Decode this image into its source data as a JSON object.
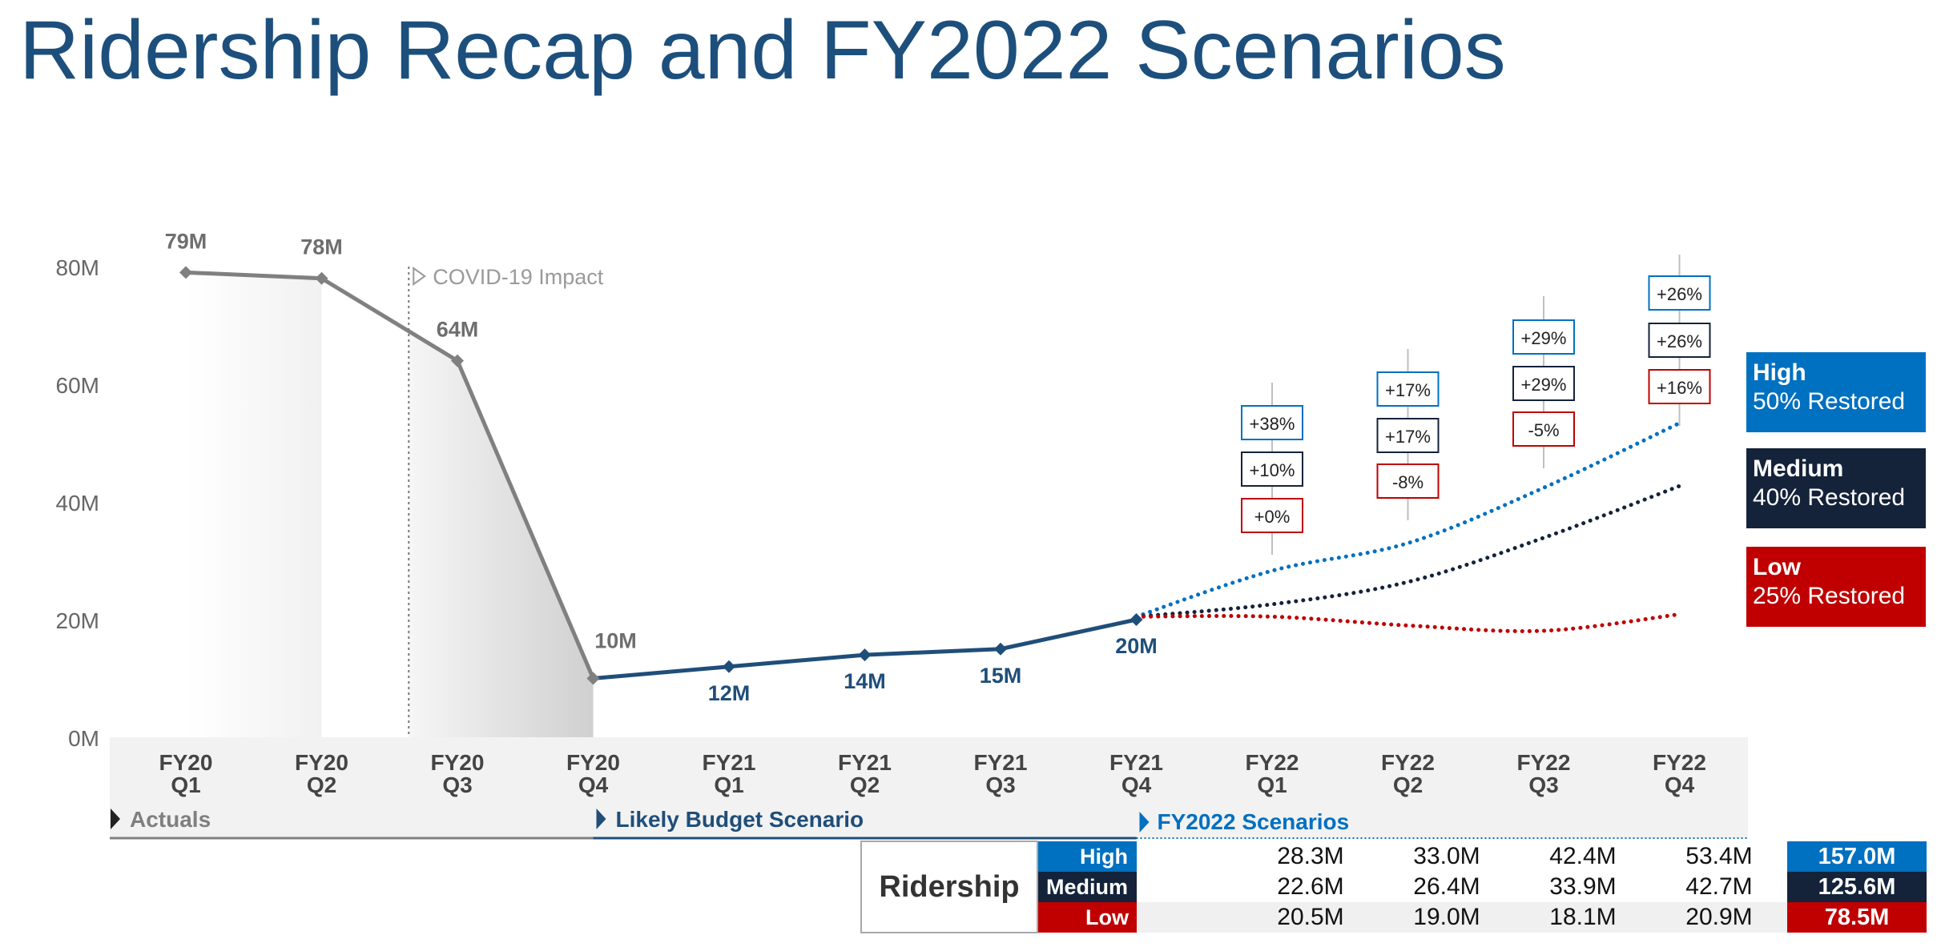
{
  "title": "Ridership Recap and FY2022 Scenarios",
  "colors": {
    "actual": "#808080",
    "likely": "#1f4e79",
    "high": "#0070c0",
    "medium": "#14233a",
    "low": "#c00000"
  },
  "annotations": {
    "covid": "COVID-19 Impact",
    "actuals": "Actuals",
    "likely": "Likely Budget Scenario",
    "fy2022": "FY2022 Scenarios"
  },
  "legend": [
    {
      "key": "high",
      "name": "High",
      "desc": "50% Restored"
    },
    {
      "key": "medium",
      "name": "Medium",
      "desc": "40% Restored"
    },
    {
      "key": "low",
      "name": "Low",
      "desc": "25% Restored"
    }
  ],
  "chart_data": {
    "type": "line",
    "title": "",
    "xlabel": "",
    "ylabel": "",
    "ylim": [
      0,
      80
    ],
    "yticks": [
      0,
      20,
      40,
      60,
      80
    ],
    "ytick_labels": [
      "0M",
      "20M",
      "40M",
      "60M",
      "80M"
    ],
    "grid": false,
    "legend_position": "right",
    "categories": [
      [
        "FY20",
        "Q1"
      ],
      [
        "FY20",
        "Q2"
      ],
      [
        "FY20",
        "Q3"
      ],
      [
        "FY20",
        "Q4"
      ],
      [
        "FY21",
        "Q1"
      ],
      [
        "FY21",
        "Q2"
      ],
      [
        "FY21",
        "Q3"
      ],
      [
        "FY21",
        "Q4"
      ],
      [
        "FY22",
        "Q1"
      ],
      [
        "FY22",
        "Q2"
      ],
      [
        "FY22",
        "Q3"
      ],
      [
        "FY22",
        "Q4"
      ]
    ],
    "series": [
      {
        "key": "actual",
        "style": "solid",
        "x": [
          0,
          1,
          2,
          3
        ],
        "values": [
          79,
          78,
          64,
          10
        ],
        "labels": [
          "79M",
          "78M",
          "64M",
          "10M"
        ]
      },
      {
        "key": "likely",
        "style": "solid",
        "x": [
          3,
          4,
          5,
          6,
          7
        ],
        "values": [
          10,
          12,
          14,
          15,
          20
        ],
        "labels": [
          "",
          "12M",
          "14M",
          "15M",
          "20M"
        ]
      },
      {
        "key": "high",
        "style": "dotted",
        "x": [
          7,
          8,
          9,
          10,
          11
        ],
        "values": [
          20.5,
          28.3,
          33.0,
          42.4,
          53.4
        ]
      },
      {
        "key": "medium",
        "style": "dotted",
        "x": [
          7,
          8,
          9,
          10,
          11
        ],
        "values": [
          20.5,
          22.6,
          26.4,
          33.9,
          42.7
        ]
      },
      {
        "key": "low",
        "style": "dotted",
        "x": [
          7,
          8,
          9,
          10,
          11
        ],
        "values": [
          20.5,
          20.5,
          19.0,
          18.1,
          20.9
        ]
      }
    ],
    "change_labels": [
      {
        "x": 8,
        "high": "+38%",
        "medium": "+10%",
        "low": "+0%"
      },
      {
        "x": 9,
        "high": "+17%",
        "medium": "+17%",
        "low": "-8%"
      },
      {
        "x": 10,
        "high": "+29%",
        "medium": "+29%",
        "low": "-5%"
      },
      {
        "x": 11,
        "high": "+26%",
        "medium": "+26%",
        "low": "+16%"
      }
    ]
  },
  "table": {
    "label": "Ridership",
    "rows": [
      {
        "key": "high",
        "name": "High",
        "values": [
          "28.3M",
          "33.0M",
          "42.4M",
          "53.4M"
        ],
        "total": "157.0M"
      },
      {
        "key": "medium",
        "name": "Medium",
        "values": [
          "22.6M",
          "26.4M",
          "33.9M",
          "42.7M"
        ],
        "total": "125.6M"
      },
      {
        "key": "low",
        "name": "Low",
        "values": [
          "20.5M",
          "19.0M",
          "18.1M",
          "20.9M"
        ],
        "total": "78.5M"
      }
    ]
  }
}
